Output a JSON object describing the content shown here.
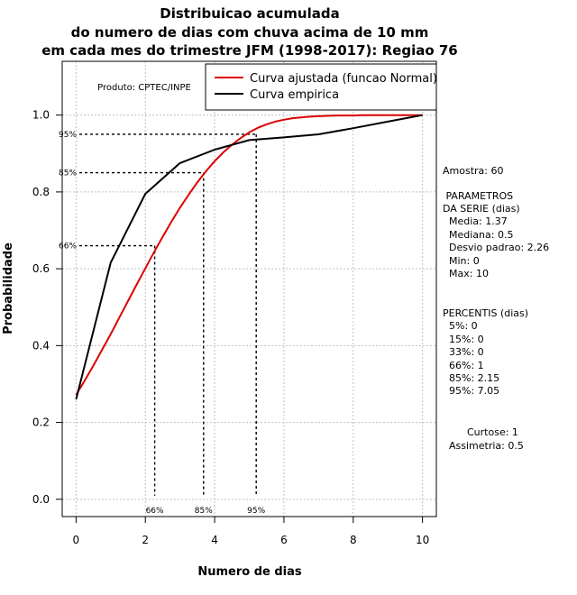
{
  "chart_data": {
    "type": "line",
    "title": [
      "Distribuicao acumulada",
      "do numero de dias com chuva acima de 10 mm",
      "em cada mes do trimestre JFM (1998-2017): Regiao 76"
    ],
    "xlabel": "Numero de dias",
    "ylabel": "Probabilidade",
    "xlim": [
      -0.4,
      10.4
    ],
    "ylim": [
      -0.045,
      1.14
    ],
    "x_ticks": [
      0,
      2,
      4,
      6,
      8,
      10
    ],
    "y_ticks": [
      0.0,
      0.2,
      0.4,
      0.6,
      0.8,
      1.0
    ],
    "x_tick_labels": [
      "0",
      "2",
      "4",
      "6",
      "8",
      "10"
    ],
    "y_tick_labels": [
      "0.0",
      "0.2",
      "0.4",
      "0.6",
      "0.8",
      "1.0"
    ],
    "grid": true,
    "legend_position": "top-right",
    "series": [
      {
        "name": "Curva ajustada (funcao Normal)",
        "color": "#dd0000",
        "x": [
          0,
          0.25,
          0.5,
          0.75,
          1,
          1.25,
          1.5,
          1.75,
          2,
          2.25,
          2.5,
          2.75,
          3,
          3.25,
          3.5,
          3.75,
          4,
          4.25,
          4.5,
          4.75,
          5,
          5.25,
          5.5,
          5.75,
          6,
          6.25,
          6.5,
          6.75,
          7,
          7.25,
          7.5,
          7.75,
          8,
          8.25,
          8.5,
          8.75,
          9,
          9.25,
          9.5,
          9.75,
          10
        ],
        "values": [
          0.272,
          0.309,
          0.348,
          0.389,
          0.43,
          0.473,
          0.516,
          0.559,
          0.601,
          0.643,
          0.683,
          0.722,
          0.759,
          0.793,
          0.825,
          0.854,
          0.88,
          0.903,
          0.923,
          0.94,
          0.955,
          0.967,
          0.976,
          0.983,
          0.988,
          0.992,
          0.994,
          0.996,
          0.997,
          0.998,
          0.999,
          0.999,
          0.999,
          1.0,
          1.0,
          1.0,
          1.0,
          1.0,
          1.0,
          1.0,
          1.0
        ]
      },
      {
        "name": "Curva empirica",
        "color": "#000000",
        "x": [
          0,
          1,
          2,
          3,
          4,
          5,
          6,
          7,
          8,
          9,
          10
        ],
        "values": [
          0.26,
          0.616,
          0.795,
          0.875,
          0.91,
          0.935,
          0.942,
          0.95,
          0.966,
          0.983,
          1.0
        ]
      }
    ],
    "percentile_guides": [
      {
        "label": "66%",
        "x": 2.27,
        "y": 0.66
      },
      {
        "label": "85%",
        "x": 3.68,
        "y": 0.85
      },
      {
        "label": "95%",
        "x": 5.2,
        "y": 0.95
      }
    ],
    "annotations": {
      "produto": "Produto: CPTEC/INPE"
    }
  },
  "stats": {
    "amostra": "Amostra: 60",
    "parametros_title": " PARAMETROS",
    "da_serie": "DA SERIE (dias)",
    "media": "Media: 1.37",
    "mediana": "Mediana: 0.5",
    "desvio": "Desvio padrao: 2.26",
    "min": "Min: 0",
    "max": "Max: 10",
    "percentis_title": "PERCENTIS (dias)",
    "p5": "5%: 0",
    "p15": "15%: 0",
    "p33": "33%: 0",
    "p66": "66%: 1",
    "p85": "85%: 2.15",
    "p95": "95%: 7.05",
    "curtose": "Curtose: 1",
    "assimetria": "Assimetria: 0.5"
  }
}
